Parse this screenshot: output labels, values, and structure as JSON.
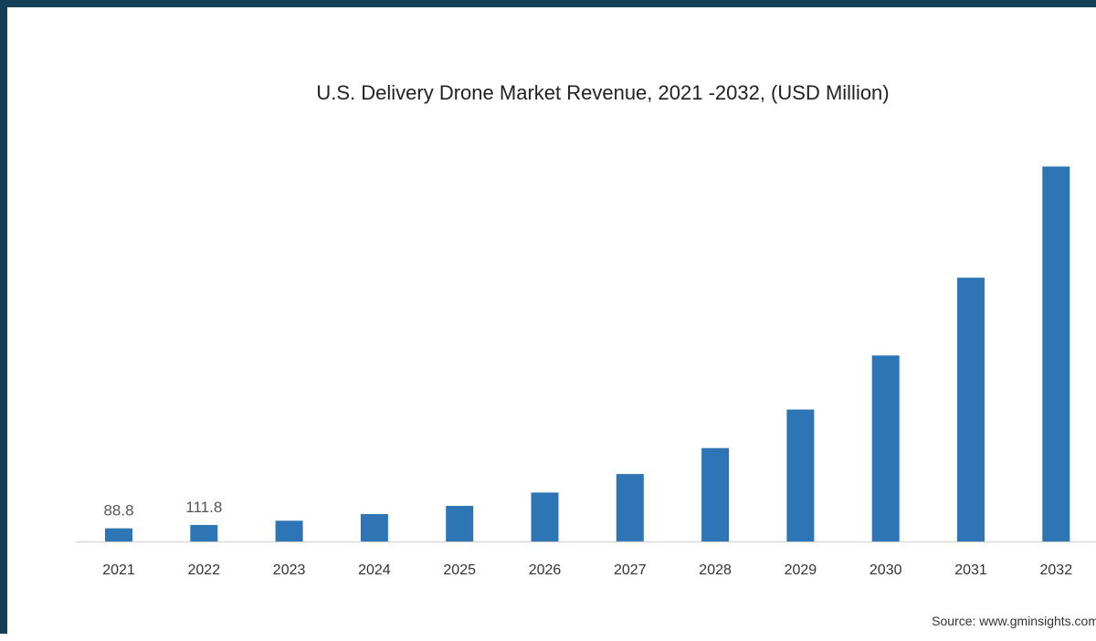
{
  "chart_data": {
    "type": "bar",
    "title": "U.S. Delivery Drone Market Revenue, 2021 -2032, (USD Million)",
    "categories": [
      "2021",
      "2022",
      "2023",
      "2024",
      "2025",
      "2026",
      "2027",
      "2028",
      "2029",
      "2030",
      "2031",
      "2032"
    ],
    "values": [
      88.8,
      111.8,
      140,
      185,
      240,
      330,
      455,
      630,
      890,
      1255,
      1780,
      2530
    ],
    "data_labels": [
      "88.8",
      "111.8",
      "",
      "",
      "",
      "",
      "",
      "",
      "",
      "",
      "",
      ""
    ],
    "xlabel": "",
    "ylabel": "",
    "ylim": [
      0,
      2600
    ],
    "bar_color": "#2e75b6",
    "axis_color": "#d0d0d0",
    "grid": false
  },
  "source": "Source: www.gminsights.com"
}
